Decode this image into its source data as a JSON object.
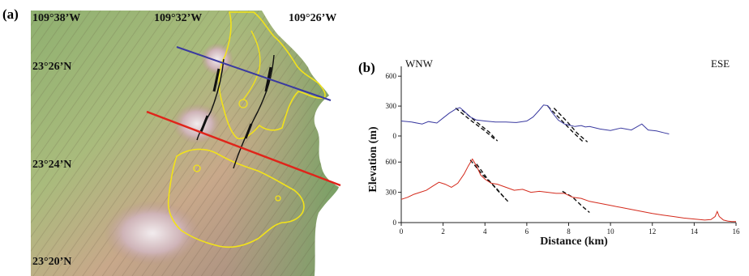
{
  "panel_a": {
    "label": "(a)",
    "longitudes": [
      "109°38’W",
      "109°32’W",
      "109°26’W"
    ],
    "latitudes": [
      "23°26’N",
      "23°24’N",
      "23°20’N"
    ]
  },
  "panel_b": {
    "label": "(b)",
    "direction_left": "WNW",
    "direction_right": "ESE"
  },
  "chart_data": {
    "type": "line",
    "xlabel": "Distance (km)",
    "ylabel": "Elevation (m)",
    "xlim": [
      0,
      16
    ],
    "x_ticks": [
      0,
      2,
      4,
      6,
      8,
      10,
      12,
      14,
      16
    ],
    "upper_y_ticks": [
      0,
      300,
      600
    ],
    "lower_y_ticks": [
      0,
      300,
      600
    ],
    "series": [
      {
        "color": "#3a3aa0",
        "x": [
          0,
          0.5,
          1,
          1.3,
          1.7,
          2.0,
          2.3,
          2.6,
          2.8,
          3.0,
          3.3,
          3.6,
          4.0,
          4.5,
          5.0,
          5.5,
          6.0,
          6.3,
          6.6,
          6.8,
          7.0,
          7.2,
          7.5,
          7.8,
          8.0,
          8.3,
          8.6,
          8.8,
          9.0,
          9.5,
          10,
          10.5,
          11,
          11.5,
          11.8,
          12.2,
          12.6,
          12.8
        ],
        "y": [
          150,
          140,
          120,
          145,
          130,
          180,
          230,
          270,
          285,
          250,
          190,
          160,
          150,
          140,
          140,
          135,
          150,
          190,
          260,
          310,
          305,
          240,
          160,
          120,
          110,
          95,
          105,
          90,
          95,
          70,
          55,
          80,
          60,
          120,
          60,
          50,
          30,
          20
        ]
      },
      {
        "color": "#d42a1c",
        "x": [
          0,
          0.3,
          0.6,
          0.9,
          1.2,
          1.5,
          1.8,
          2.1,
          2.4,
          2.7,
          3.0,
          3.2,
          3.4,
          3.6,
          3.8,
          4.0,
          4.3,
          4.6,
          5.0,
          5.4,
          5.8,
          6.2,
          6.6,
          7.0,
          7.4,
          7.8,
          8.2,
          8.6,
          9.0,
          9.5,
          10,
          10.5,
          11,
          11.5,
          12,
          12.5,
          13,
          13.5,
          14,
          14.5,
          14.8,
          15.0,
          15.1,
          15.2,
          15.4,
          15.6,
          15.8,
          16.0
        ],
        "y": [
          230,
          250,
          280,
          300,
          320,
          360,
          400,
          380,
          350,
          390,
          480,
          560,
          630,
          560,
          470,
          430,
          390,
          380,
          350,
          320,
          330,
          300,
          310,
          300,
          290,
          290,
          250,
          240,
          210,
          190,
          170,
          150,
          130,
          110,
          90,
          75,
          60,
          45,
          35,
          25,
          30,
          60,
          110,
          60,
          25,
          15,
          10,
          10
        ]
      }
    ],
    "dashed_fault_traces": [
      {
        "panel": "upper",
        "x": [
          2.6,
          3.3,
          4.0,
          4.5
        ],
        "y": [
          280,
          160,
          50,
          -40
        ]
      },
      {
        "panel": "upper",
        "x": [
          2.9,
          3.6,
          4.2,
          4.6
        ],
        "y": [
          260,
          140,
          40,
          -50
        ]
      },
      {
        "panel": "upper",
        "x": [
          7.0,
          7.6,
          8.2,
          8.7
        ],
        "y": [
          300,
          170,
          40,
          -60
        ]
      },
      {
        "panel": "upper",
        "x": [
          7.3,
          7.9,
          8.4,
          8.9
        ],
        "y": [
          280,
          150,
          30,
          -60
        ]
      },
      {
        "panel": "lower",
        "x": [
          3.3,
          3.9,
          4.5,
          5.0
        ],
        "y": [
          620,
          470,
          350,
          230
        ]
      },
      {
        "panel": "lower",
        "x": [
          3.6,
          4.1,
          4.6,
          5.1
        ],
        "y": [
          580,
          440,
          320,
          210
        ]
      },
      {
        "panel": "lower",
        "x": [
          7.7,
          8.2,
          8.6,
          9.0
        ],
        "y": [
          310,
          250,
          170,
          100
        ]
      }
    ]
  }
}
